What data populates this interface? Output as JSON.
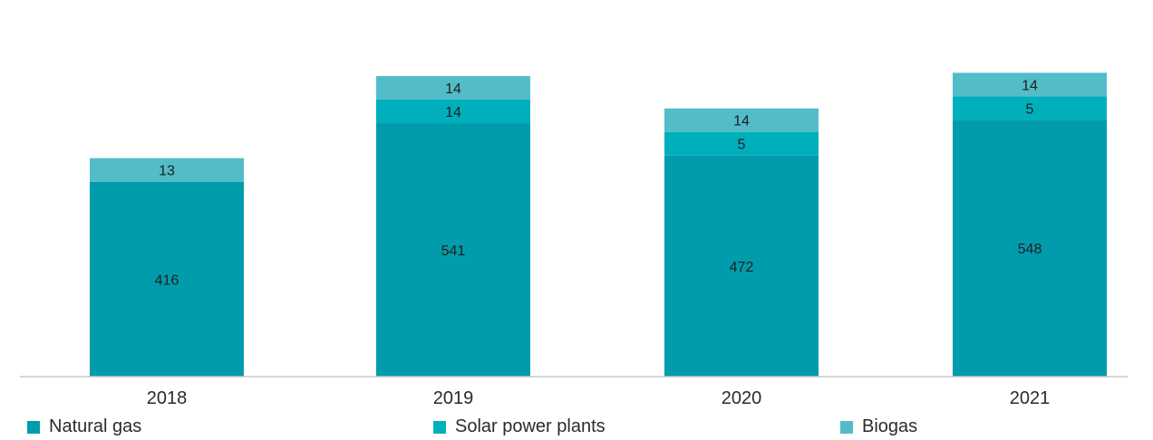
{
  "chart_data": {
    "type": "bar",
    "stacked": true,
    "categories": [
      "2018",
      "2019",
      "2020",
      "2021"
    ],
    "series": [
      {
        "name": "Natural gas",
        "color": "#009CAC",
        "values": [
          416,
          541,
          472,
          548
        ]
      },
      {
        "name": "Solar power plants",
        "color": "#00AFBC",
        "values": [
          null,
          14,
          5,
          5
        ]
      },
      {
        "name": "Biogas",
        "color": "#52BCC9",
        "values": [
          13,
          14,
          14,
          14
        ]
      }
    ],
    "title": "",
    "xlabel": "",
    "ylabel": "",
    "grid": false,
    "legend_position": "bottom"
  }
}
